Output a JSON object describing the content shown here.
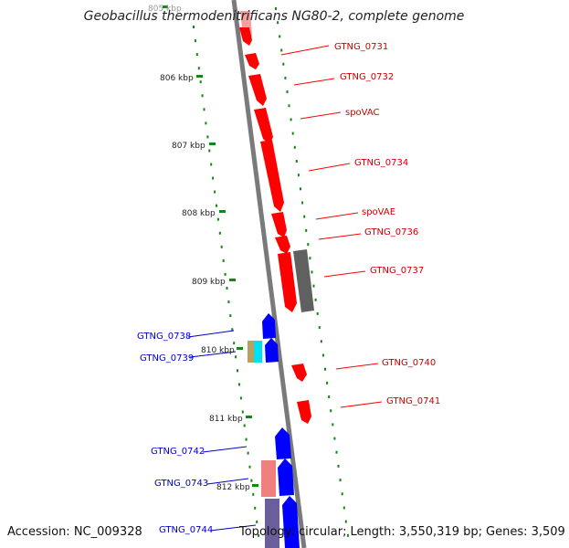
{
  "title": "Geobacillus thermodenitrificans NG80-2, complete genome",
  "footer": {
    "accession": "Accession: NC_009328",
    "topology": "Topology: circular;",
    "length": "Length: 3,550,319 bp;",
    "genes": "Genes: 3,509"
  },
  "ticks": [
    {
      "label": "805 kbp"
    },
    {
      "label": "806 kbp"
    },
    {
      "label": "807 kbp"
    },
    {
      "label": "808 kbp"
    },
    {
      "label": "809 kbp"
    },
    {
      "label": "810 kbp"
    },
    {
      "label": "811 kbp"
    },
    {
      "label": "812 kbp"
    }
  ],
  "genes_forward": [
    {
      "label": "GTNG_0731",
      "color": "#ff0000"
    },
    {
      "label": "GTNG_0732",
      "color": "#ff0000"
    },
    {
      "label": "spoVAC",
      "color": "#ff0000"
    },
    {
      "label": "GTNG_0734",
      "color": "#ff0000"
    },
    {
      "label": "spoVAE",
      "color": "#ff0000"
    },
    {
      "label": "GTNG_0736",
      "color": "#ff0000"
    },
    {
      "label": "GTNG_0737",
      "color": "#606060"
    },
    {
      "label": "GTNG_0740",
      "color": "#ff0000"
    },
    {
      "label": "GTNG_0741",
      "color": "#ff0000"
    }
  ],
  "genes_reverse": [
    {
      "label": "GTNG_0738",
      "color": "#0000ff"
    },
    {
      "label": "GTNG_0739",
      "color": "#0000ff"
    },
    {
      "label": "GTNG_0742",
      "color": "#0000ff"
    },
    {
      "label": "GTNG_0743",
      "color": "#0000ff"
    },
    {
      "label": "GTNG_0744",
      "color": "#0000ff"
    }
  ],
  "colors": {
    "forward": "#ff0000",
    "reverse": "#0000ff",
    "backbone": "#888888",
    "ticks": "#118811",
    "pink": "#f08080",
    "olive": "#b8a060",
    "cyan": "#00e0f0",
    "slate": "#6a5f9a"
  }
}
